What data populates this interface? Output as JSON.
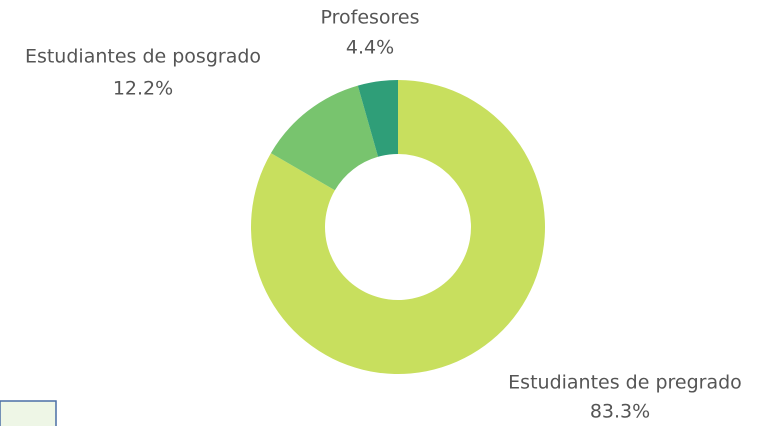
{
  "chart_data": {
    "type": "donut",
    "categories": [
      "Estudiantes de pregrado",
      "Estudiantes de posgrado",
      "Profesores"
    ],
    "values": [
      83.3,
      12.2,
      4.4
    ],
    "value_labels": [
      "83.3%",
      "12.2%",
      "4.4%"
    ],
    "colors": [
      "#c8df5e",
      "#78c46e",
      "#2f9e78"
    ]
  }
}
